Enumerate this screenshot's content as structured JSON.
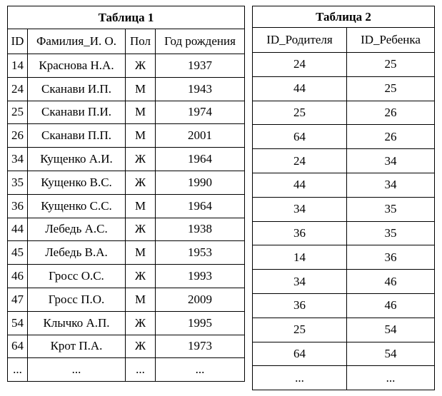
{
  "table1": {
    "title": "Таблица 1",
    "header": [
      "ID",
      "Фамилия_И. О.",
      "Пол",
      "Год рождения"
    ],
    "rows": [
      [
        "14",
        "Краснова Н.А.",
        "Ж",
        "1937"
      ],
      [
        "24",
        "Сканави И.П.",
        "М",
        "1943"
      ],
      [
        "25",
        "Сканави П.И.",
        "М",
        "1974"
      ],
      [
        "26",
        "Сканави П.П.",
        "М",
        "2001"
      ],
      [
        "34",
        "Кущенко А.И.",
        "Ж",
        "1964"
      ],
      [
        "35",
        "Кущенко В.С.",
        "Ж",
        "1990"
      ],
      [
        "36",
        "Кущенко С.С.",
        "М",
        "1964"
      ],
      [
        "44",
        "Лебедь А.С.",
        "Ж",
        "1938"
      ],
      [
        "45",
        "Лебедь В.А.",
        "М",
        "1953"
      ],
      [
        "46",
        "Гросс О.С.",
        "Ж",
        "1993"
      ],
      [
        "47",
        "Гросс П.О.",
        "М",
        "2009"
      ],
      [
        "54",
        "Клычко А.П.",
        "Ж",
        "1995"
      ],
      [
        "64",
        "Крот П.А.",
        "Ж",
        "1973"
      ],
      [
        "...",
        "...",
        "...",
        "..."
      ]
    ]
  },
  "table2": {
    "title": "Таблица 2",
    "header": [
      "ID_Родителя",
      "ID_Ребенка"
    ],
    "rows": [
      [
        "24",
        "25"
      ],
      [
        "44",
        "25"
      ],
      [
        "25",
        "26"
      ],
      [
        "64",
        "26"
      ],
      [
        "24",
        "34"
      ],
      [
        "44",
        "34"
      ],
      [
        "34",
        "35"
      ],
      [
        "36",
        "35"
      ],
      [
        "14",
        "36"
      ],
      [
        "34",
        "46"
      ],
      [
        "36",
        "46"
      ],
      [
        "25",
        "54"
      ],
      [
        "64",
        "54"
      ],
      [
        "...",
        "..."
      ]
    ]
  }
}
